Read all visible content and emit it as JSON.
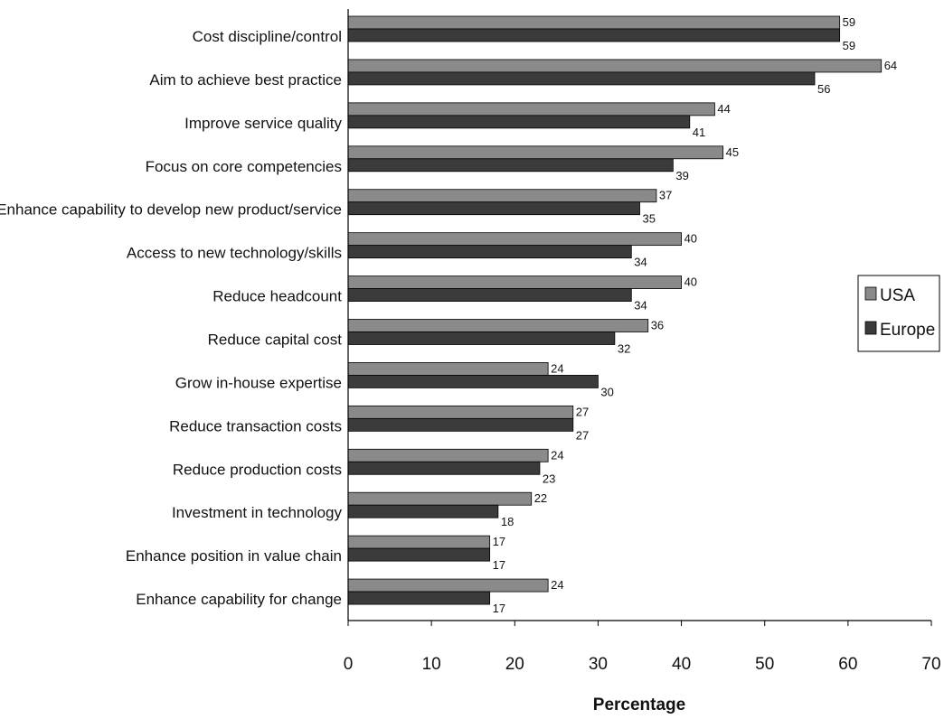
{
  "chart_data": {
    "type": "bar",
    "orientation": "horizontal",
    "categories": [
      "Cost discipline/control",
      "Aim to achieve best practice",
      "Improve service quality",
      "Focus on core competencies",
      "Enhance capability to develop new product/service",
      "Access to new technology/skills",
      "Reduce headcount",
      "Reduce capital cost",
      "Grow in-house expertise",
      "Reduce transaction costs",
      "Reduce production costs",
      "Investment in technology",
      "Enhance position in value chain",
      "Enhance capability for change"
    ],
    "series": [
      {
        "name": "USA",
        "color": "#8a8a8a",
        "values": [
          59,
          64,
          44,
          45,
          37,
          40,
          40,
          36,
          24,
          27,
          24,
          22,
          17,
          24
        ]
      },
      {
        "name": "Europe",
        "color": "#3b3b3b",
        "values": [
          59,
          56,
          41,
          39,
          35,
          34,
          34,
          32,
          30,
          27,
          23,
          18,
          17,
          17
        ]
      }
    ],
    "xlabel": "Percentage",
    "ylabel": "",
    "title": "",
    "xlim": [
      0,
      70
    ],
    "xticks": [
      "0",
      "10",
      "20",
      "30",
      "40",
      "50",
      "60",
      "70"
    ],
    "grid": false,
    "legend_position": "right"
  }
}
